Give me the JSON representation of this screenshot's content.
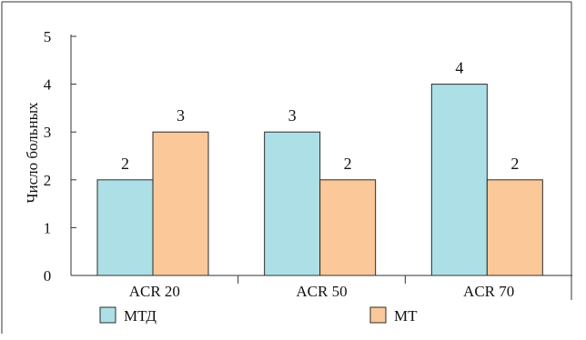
{
  "chart_data": {
    "type": "bar",
    "title": "",
    "xlabel": "",
    "ylabel": "Число больных",
    "categories": [
      "ACR 20",
      "ACR 50",
      "ACR 70"
    ],
    "series": [
      {
        "name": "МТД",
        "values": [
          2,
          3,
          4
        ],
        "color": "#ade0e6"
      },
      {
        "name": "МТ",
        "values": [
          3,
          2,
          2
        ],
        "color": "#fbc89a"
      }
    ],
    "ylim": [
      0,
      5
    ],
    "yticks": [
      0,
      1,
      2,
      3,
      4,
      5
    ],
    "grid": false,
    "data_labels": true,
    "legend_position": "bottom"
  }
}
